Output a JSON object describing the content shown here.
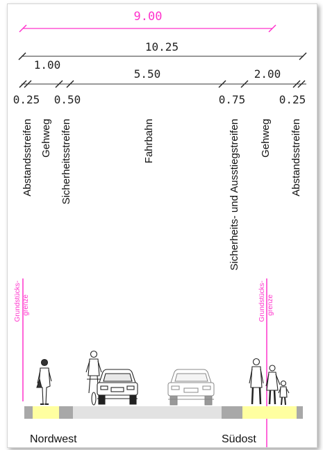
{
  "dimensions": {
    "overall_pink": "9.00",
    "total": "10.25",
    "left_1": "1.00",
    "carriageway": "5.50",
    "right_2": "2.00",
    "sub_025_left": "0.25",
    "sub_050": "0.50",
    "sub_075": "0.75",
    "sub_025_right": "0.25"
  },
  "zones": {
    "abstand_left": "Abstandsstreifen",
    "gehweg_left": "Gehweg",
    "sicherheit_left": "Sicherheitsstreifen",
    "fahrbahn": "Fahrbahn",
    "sicherheit_right": "Sicherheits- und Ausstiegstreifen",
    "gehweg_right": "Gehweg",
    "abstand_right": "Abstandsstreifen"
  },
  "property_line": {
    "left_line1": "Grundstücks-",
    "left_line2": "grenze",
    "right_line1": "Grundstücks-",
    "right_line2": "grenze"
  },
  "directions": {
    "west": "Nordwest",
    "east": "Südost"
  },
  "colors": {
    "accent_pink": "#ff33cc",
    "sidewalk_yellow": "#ffffa0",
    "strip_gray": "#a8a8a8",
    "road_light": "#e2e2e2"
  }
}
